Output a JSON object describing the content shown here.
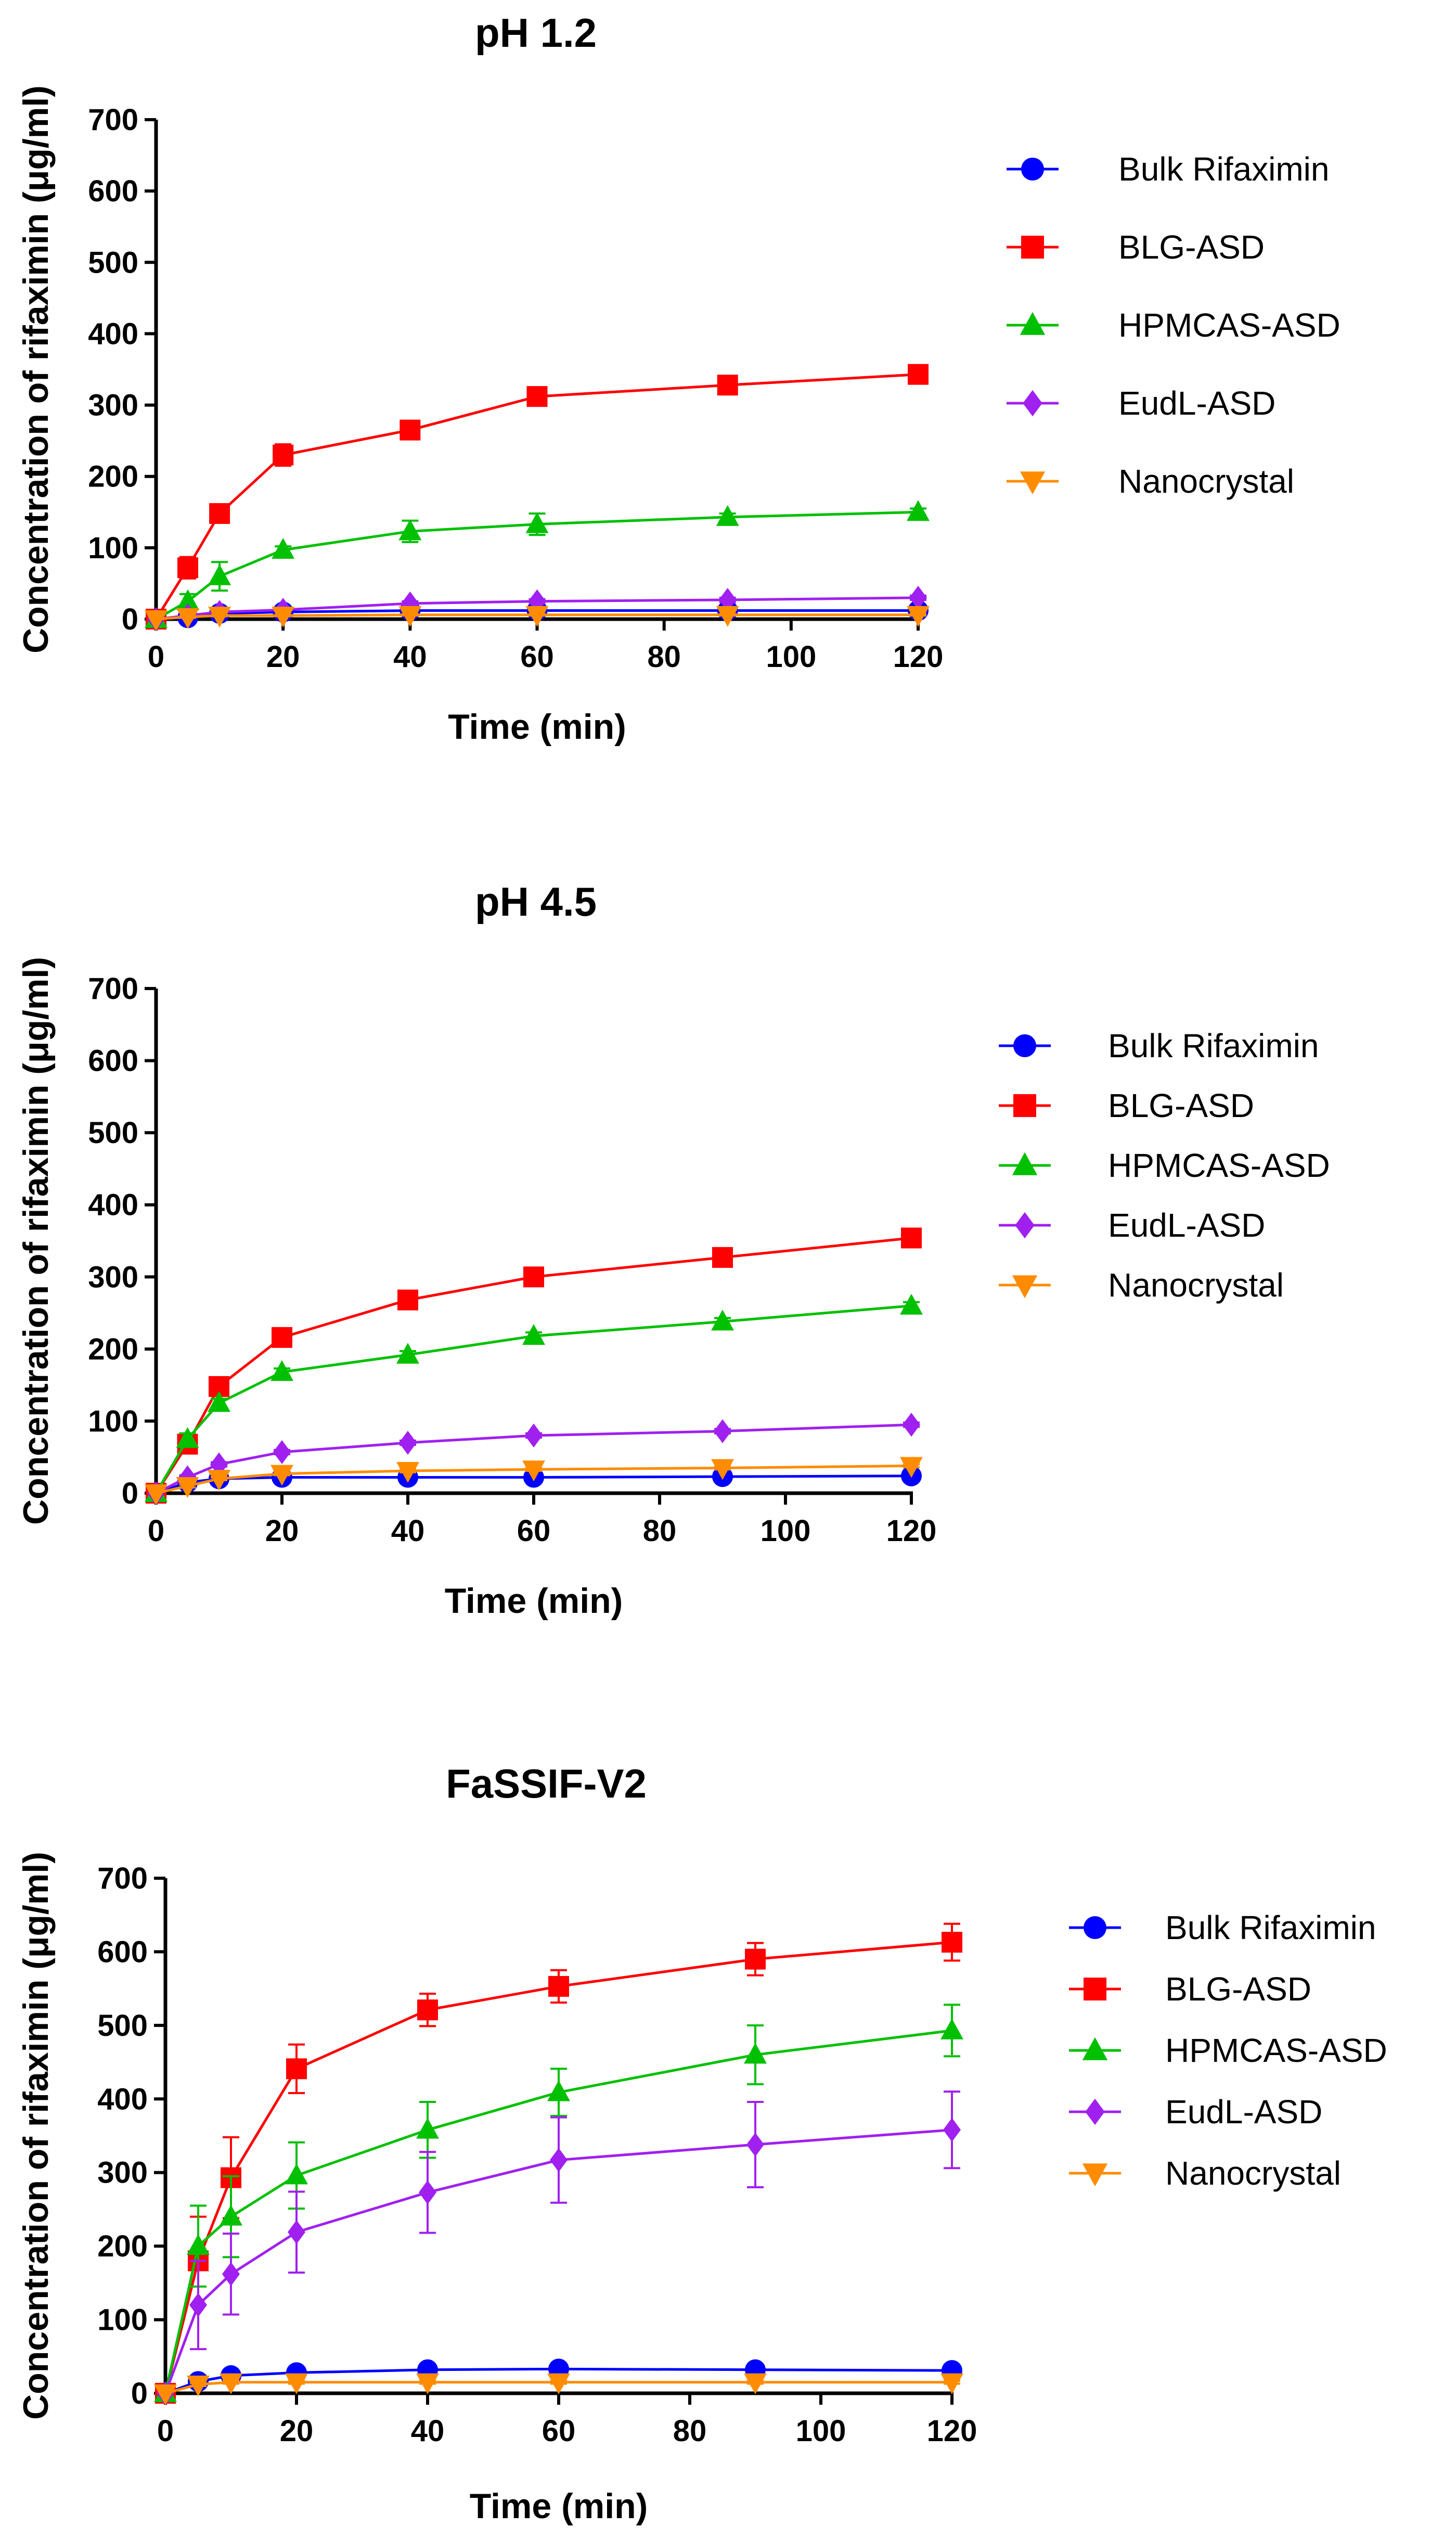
{
  "chart_data": [
    {
      "type": "line",
      "title": "pH 1.2",
      "xlabel": "Time (min)",
      "ylabel": "Concentration of rifaximin (μg/ml)",
      "xlim": [
        0,
        120
      ],
      "ylim": [
        0,
        700
      ],
      "xticks": [
        0,
        20,
        40,
        60,
        80,
        100,
        120
      ],
      "yticks": [
        0,
        100,
        200,
        300,
        400,
        500,
        600,
        700
      ],
      "legend_position": "top-right",
      "x": [
        0,
        5,
        10,
        20,
        40,
        60,
        90,
        120
      ],
      "series": [
        {
          "name": "Bulk Rifaximin",
          "color": "#0000ff",
          "marker": "circle",
          "values": [
            0,
            2,
            8,
            10,
            12,
            12,
            12,
            12
          ],
          "errors": [
            0,
            1,
            2,
            2,
            2,
            2,
            2,
            2
          ]
        },
        {
          "name": "BLG-ASD",
          "color": "#ff0000",
          "marker": "square",
          "values": [
            0,
            72,
            148,
            230,
            265,
            312,
            328,
            343
          ],
          "errors": [
            0,
            15,
            8,
            15,
            6,
            6,
            5,
            5
          ]
        },
        {
          "name": "HPMCAS-ASD",
          "color": "#00c000",
          "marker": "triangle-up",
          "values": [
            0,
            25,
            60,
            97,
            123,
            133,
            143,
            150
          ],
          "errors": [
            0,
            10,
            20,
            5,
            15,
            15,
            5,
            5
          ]
        },
        {
          "name": "EudL-ASD",
          "color": "#a020f0",
          "marker": "diamond",
          "values": [
            0,
            5,
            10,
            13,
            22,
            25,
            27,
            30
          ],
          "errors": [
            0,
            2,
            2,
            2,
            3,
            3,
            3,
            3
          ]
        },
        {
          "name": "Nanocrystal",
          "color": "#ff8c00",
          "marker": "triangle-down",
          "values": [
            0,
            3,
            5,
            5,
            6,
            6,
            6,
            6
          ],
          "errors": [
            0,
            1,
            1,
            1,
            1,
            1,
            1,
            1
          ]
        }
      ]
    },
    {
      "type": "line",
      "title": "pH 4.5",
      "xlabel": "Time (min)",
      "ylabel": "Concentration of rifaximin (μg/ml)",
      "xlim": [
        0,
        120
      ],
      "ylim": [
        0,
        700
      ],
      "xticks": [
        0,
        20,
        40,
        60,
        80,
        100,
        120
      ],
      "yticks": [
        0,
        100,
        200,
        300,
        400,
        500,
        600,
        700
      ],
      "legend_position": "top-right",
      "x": [
        0,
        5,
        10,
        20,
        40,
        60,
        90,
        120
      ],
      "series": [
        {
          "name": "Bulk Rifaximin",
          "color": "#0000ff",
          "marker": "circle",
          "values": [
            0,
            15,
            20,
            22,
            22,
            22,
            23,
            24
          ],
          "errors": [
            0,
            2,
            2,
            2,
            2,
            2,
            2,
            2
          ]
        },
        {
          "name": "BLG-ASD",
          "color": "#ff0000",
          "marker": "square",
          "values": [
            0,
            68,
            148,
            216,
            268,
            300,
            327,
            354
          ],
          "errors": [
            0,
            8,
            6,
            5,
            5,
            5,
            5,
            5
          ]
        },
        {
          "name": "HPMCAS-ASD",
          "color": "#00c000",
          "marker": "triangle-up",
          "values": [
            0,
            75,
            125,
            168,
            192,
            218,
            238,
            260
          ],
          "errors": [
            0,
            8,
            6,
            5,
            5,
            5,
            5,
            5
          ]
        },
        {
          "name": "EudL-ASD",
          "color": "#a020f0",
          "marker": "diamond",
          "values": [
            0,
            22,
            40,
            57,
            70,
            80,
            86,
            95
          ],
          "errors": [
            0,
            3,
            3,
            3,
            3,
            3,
            3,
            3
          ]
        },
        {
          "name": "Nanocrystal",
          "color": "#ff8c00",
          "marker": "triangle-down",
          "values": [
            0,
            10,
            20,
            27,
            31,
            33,
            35,
            38
          ],
          "errors": [
            0,
            2,
            2,
            2,
            2,
            2,
            2,
            2
          ]
        }
      ]
    },
    {
      "type": "line",
      "title": "FaSSIF-V2",
      "xlabel": "Time (min)",
      "ylabel": "Concentration of rifaximin (μg/ml)",
      "xlim": [
        0,
        120
      ],
      "ylim": [
        0,
        700
      ],
      "xticks": [
        0,
        20,
        40,
        60,
        80,
        100,
        120
      ],
      "yticks": [
        0,
        100,
        200,
        300,
        400,
        500,
        600,
        700
      ],
      "legend_position": "top-right",
      "x": [
        0,
        5,
        10,
        20,
        40,
        60,
        90,
        120
      ],
      "series": [
        {
          "name": "Bulk Rifaximin",
          "color": "#0000ff",
          "marker": "circle",
          "values": [
            0,
            16,
            24,
            28,
            32,
            33,
            32,
            31
          ],
          "errors": [
            0,
            3,
            3,
            3,
            3,
            3,
            3,
            3
          ]
        },
        {
          "name": "BLG-ASD",
          "color": "#ff0000",
          "marker": "square",
          "values": [
            0,
            180,
            293,
            441,
            521,
            553,
            590,
            613
          ],
          "errors": [
            0,
            60,
            55,
            33,
            22,
            22,
            22,
            25
          ]
        },
        {
          "name": "HPMCAS-ASD",
          "color": "#00c000",
          "marker": "triangle-up",
          "values": [
            0,
            200,
            240,
            296,
            358,
            409,
            460,
            493
          ],
          "errors": [
            0,
            55,
            55,
            45,
            38,
            32,
            40,
            35
          ]
        },
        {
          "name": "EudL-ASD",
          "color": "#a020f0",
          "marker": "diamond",
          "values": [
            0,
            120,
            162,
            219,
            273,
            317,
            338,
            358
          ],
          "errors": [
            0,
            60,
            55,
            55,
            55,
            58,
            58,
            52
          ]
        },
        {
          "name": "Nanocrystal",
          "color": "#ff8c00",
          "marker": "triangle-down",
          "values": [
            0,
            12,
            15,
            15,
            15,
            15,
            15,
            15
          ],
          "errors": [
            0,
            2,
            2,
            2,
            2,
            2,
            2,
            2
          ]
        }
      ]
    }
  ]
}
